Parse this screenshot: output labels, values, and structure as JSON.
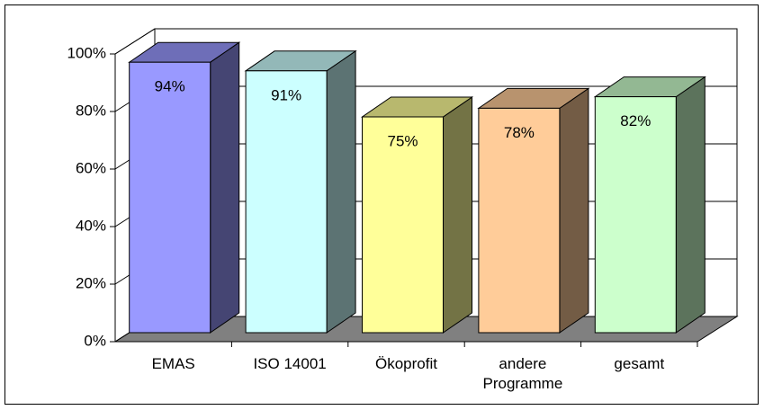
{
  "chart_data": {
    "type": "bar3d",
    "categories": [
      "EMAS",
      "ISO 14001",
      "Ökoprofit",
      "andere Programme",
      "gesamt"
    ],
    "values": [
      94,
      91,
      75,
      78,
      82
    ],
    "value_labels": [
      "94%",
      "91%",
      "75%",
      "78%",
      "82%"
    ],
    "colors": [
      "#9999ff",
      "#ccffff",
      "#ffff99",
      "#ffcc99",
      "#ccffcc"
    ],
    "ylim": [
      0,
      100
    ],
    "yticks": [
      {
        "value": 0,
        "label": "0%"
      },
      {
        "value": 20,
        "label": "20%"
      },
      {
        "value": 40,
        "label": "40%"
      },
      {
        "value": 60,
        "label": "60%"
      },
      {
        "value": 80,
        "label": "80%"
      },
      {
        "value": 100,
        "label": "100%"
      }
    ],
    "grid": true
  }
}
